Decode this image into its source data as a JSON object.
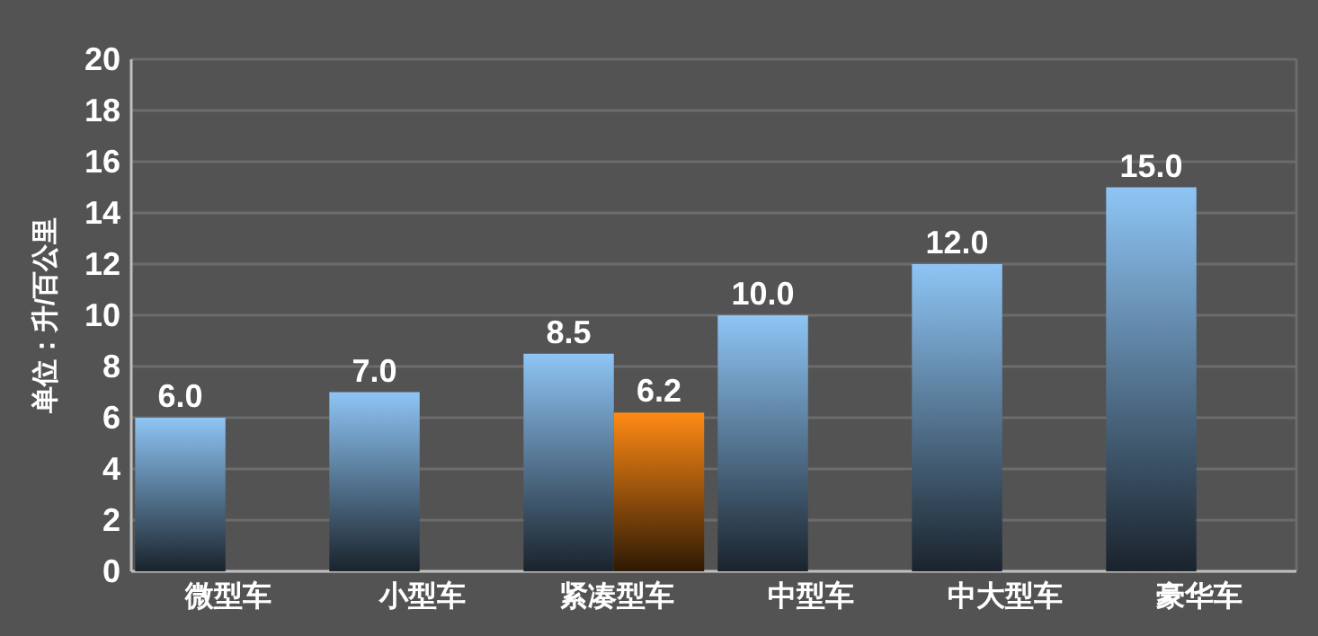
{
  "chart_data": {
    "type": "bar",
    "ylabel": "单位：升/百公里",
    "categories": [
      "微型车",
      "小型车",
      "紧凑型车",
      "中型车",
      "中大型车",
      "豪华车"
    ],
    "series": [
      {
        "color": "#8ec5f5",
        "values": [
          6.0,
          7.0,
          8.5,
          10.0,
          12.0,
          15.0
        ],
        "value_labels": [
          "6.0",
          "7.0",
          "8.5",
          "10.0",
          "12.0",
          "15.0"
        ]
      },
      {
        "color": "#ff8a14",
        "values": [
          null,
          null,
          6.2,
          null,
          null,
          null
        ],
        "value_labels": [
          null,
          null,
          "6.2",
          null,
          null,
          null
        ]
      }
    ],
    "ylim": [
      0,
      20
    ],
    "yticks": [
      0,
      2,
      4,
      6,
      8,
      10,
      12,
      14,
      16,
      18,
      20
    ],
    "grid": "y"
  }
}
